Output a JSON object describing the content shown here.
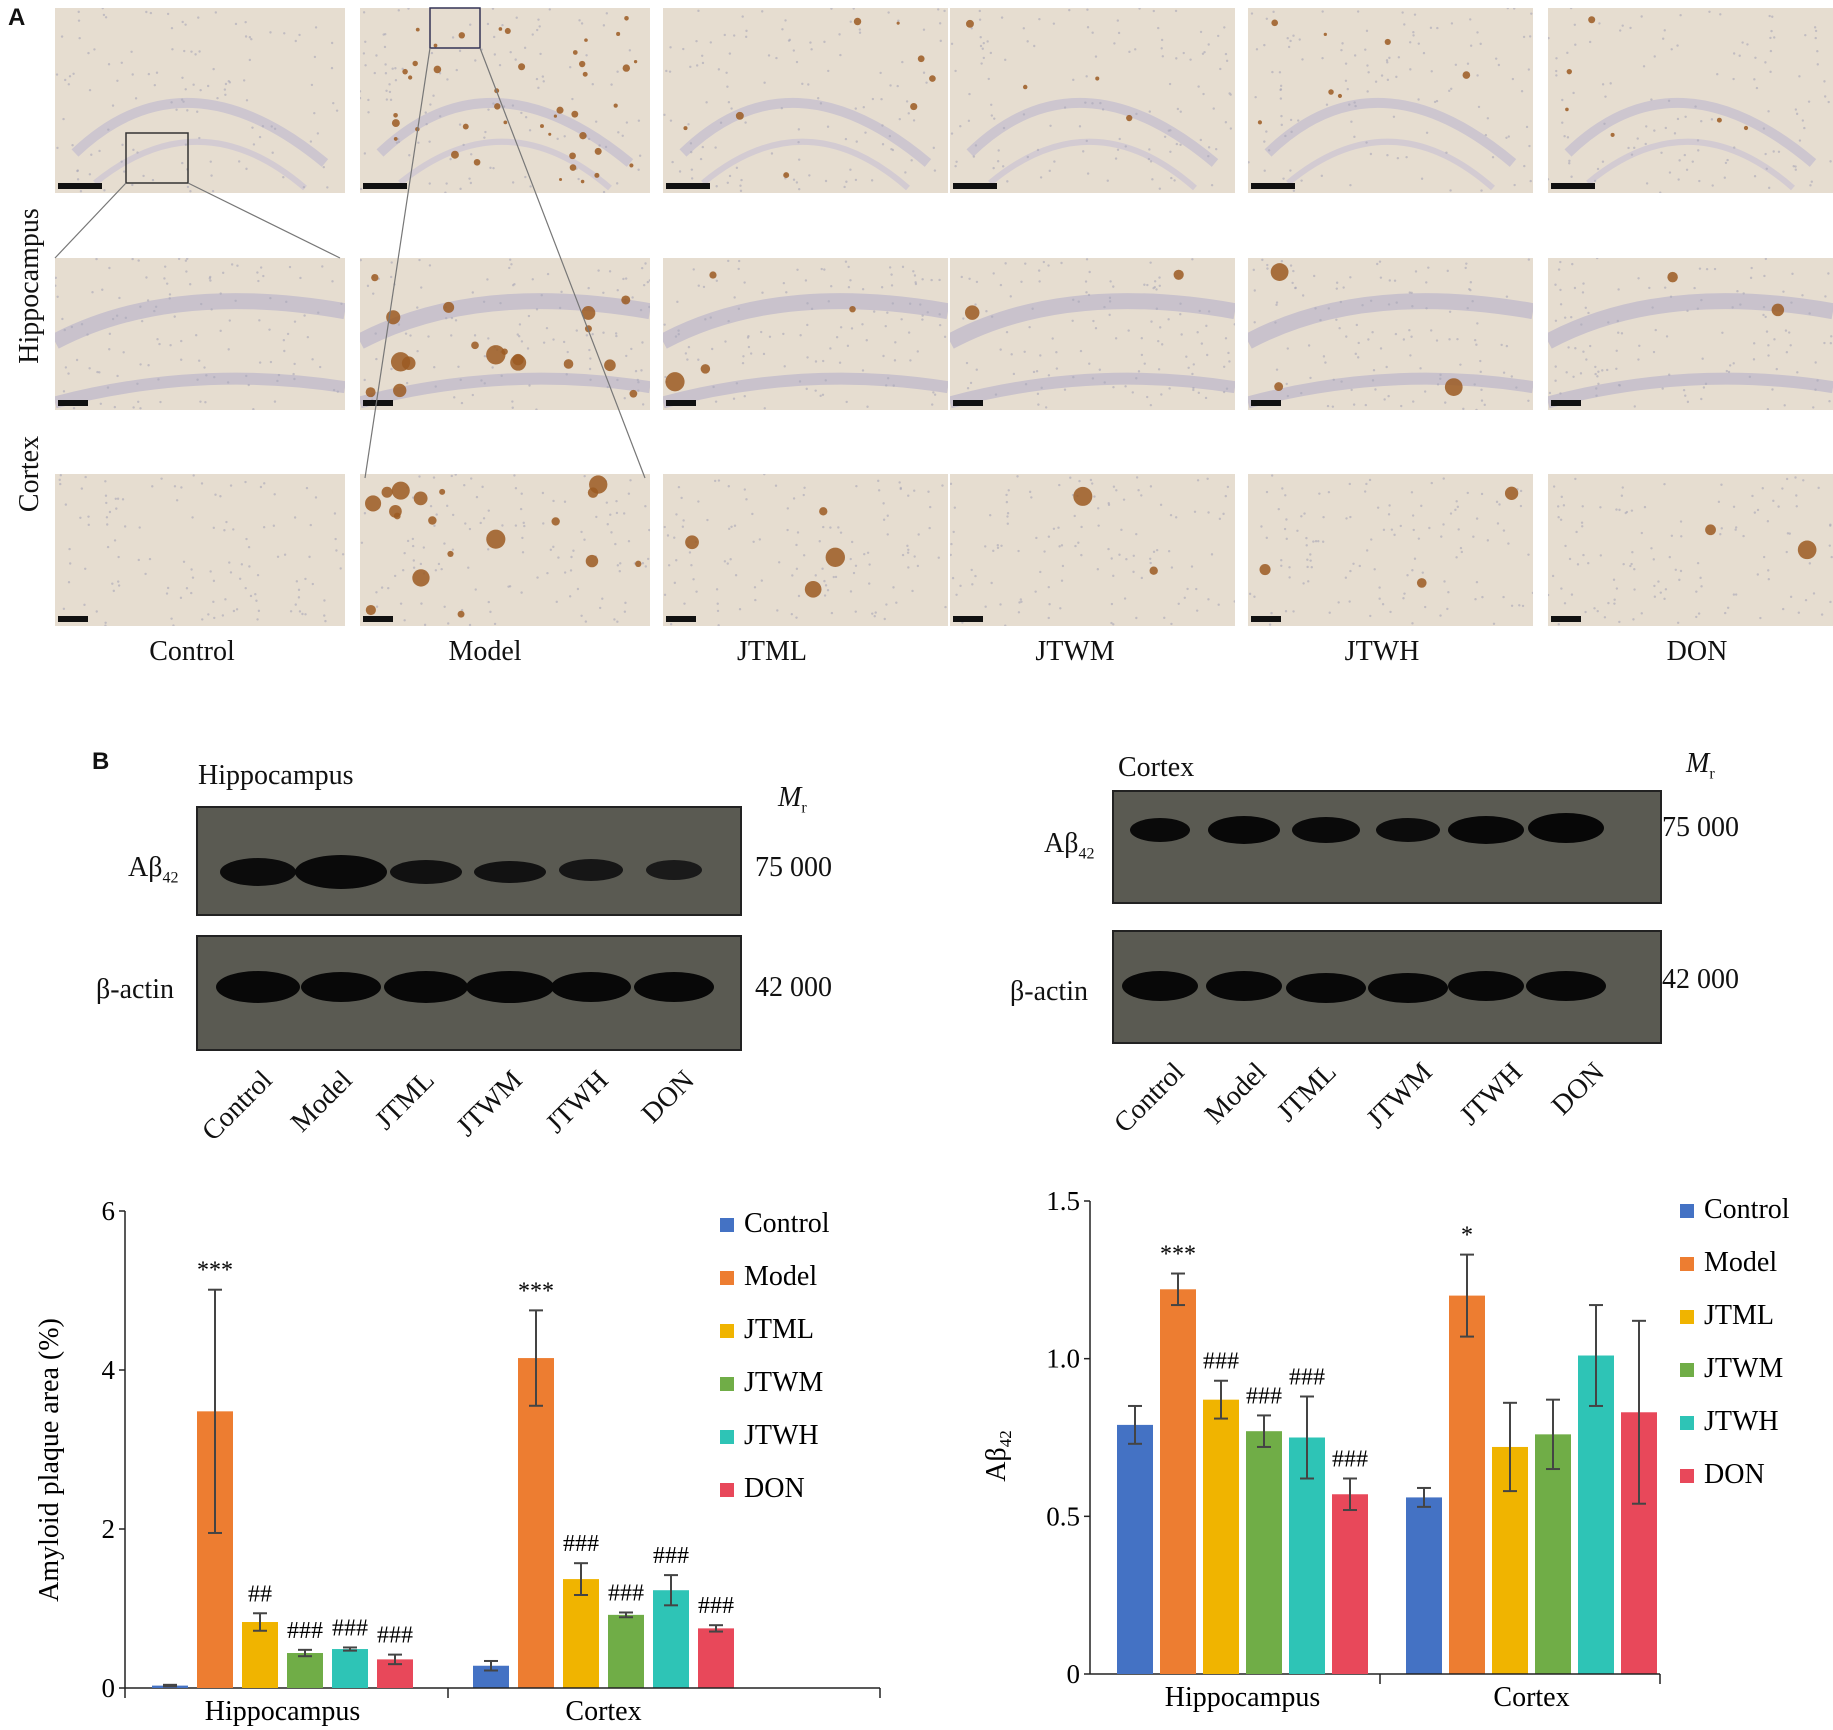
{
  "panel_a": {
    "letter": "A",
    "row_labels": {
      "hippocampus": "Hippocampus",
      "cortex": "Cortex"
    },
    "columns": [
      "Control",
      "Model",
      "JTML",
      "JTWM",
      "JTWH",
      "DON"
    ]
  },
  "panel_b": {
    "letter": "B",
    "blots": [
      {
        "title": "Hippocampus",
        "mr_label": "M",
        "mr_sub": "r",
        "band1_label": "Aβ",
        "band1_sub": "42",
        "band1_mass": "75 000",
        "band2_label": "β-actin",
        "band2_mass": "42 000",
        "lanes": [
          "Control",
          "Model",
          "JTML",
          "JTWM",
          "JTWH",
          "DON"
        ]
      },
      {
        "title": "Cortex",
        "mr_label": "M",
        "mr_sub": "r",
        "band1_label": "Aβ",
        "band1_sub": "42",
        "band1_mass": "75 000",
        "band2_label": "β-actin",
        "band2_mass": "42 000",
        "lanes": [
          "Control",
          "Model",
          "JTML",
          "JTWM",
          "JTWH",
          "DON"
        ]
      }
    ]
  },
  "colors": {
    "Control": "#4472c4",
    "Model": "#ed7d31",
    "JTML": "#f0b400",
    "JTWM": "#70ad47",
    "JTWH": "#2ec4b6",
    "DON": "#e8485a"
  },
  "chart_data": [
    {
      "type": "bar",
      "ylabel": "Amyloid plaque area (%)",
      "ylim": [
        0,
        6
      ],
      "yticks": [
        0,
        2,
        4,
        6
      ],
      "categories": [
        "Hippocampus",
        "Cortex"
      ],
      "legend_position": "top-right",
      "series": [
        {
          "name": "Control",
          "values": [
            0.03,
            0.28
          ],
          "errors": [
            0.01,
            0.06
          ],
          "marks": [
            "",
            ""
          ]
        },
        {
          "name": "Model",
          "values": [
            3.48,
            4.15
          ],
          "errors": [
            1.53,
            0.6
          ],
          "marks": [
            "***",
            "***"
          ]
        },
        {
          "name": "JTML",
          "values": [
            0.83,
            1.37
          ],
          "errors": [
            0.11,
            0.2
          ],
          "marks": [
            "##",
            "###"
          ]
        },
        {
          "name": "JTWM",
          "values": [
            0.44,
            0.92
          ],
          "errors": [
            0.04,
            0.03
          ],
          "marks": [
            "###",
            "###"
          ]
        },
        {
          "name": "JTWH",
          "values": [
            0.49,
            1.23
          ],
          "errors": [
            0.02,
            0.19
          ],
          "marks": [
            "###",
            "###"
          ]
        },
        {
          "name": "DON",
          "values": [
            0.36,
            0.75
          ],
          "errors": [
            0.06,
            0.04
          ],
          "marks": [
            "###",
            "###"
          ]
        }
      ]
    },
    {
      "type": "bar",
      "ylabel": "Aβ",
      "ylabel_sub": "42",
      "ylim": [
        0,
        1.5
      ],
      "yticks": [
        "0",
        "0.5",
        "1.0",
        "1.5"
      ],
      "categories": [
        "Hippocampus",
        "Cortex"
      ],
      "legend_position": "top-right",
      "series": [
        {
          "name": "Control",
          "values": [
            0.79,
            0.56
          ],
          "errors": [
            0.06,
            0.03
          ],
          "marks": [
            "",
            ""
          ]
        },
        {
          "name": "Model",
          "values": [
            1.22,
            1.2
          ],
          "errors": [
            0.05,
            0.13
          ],
          "marks": [
            "***",
            "*"
          ]
        },
        {
          "name": "JTML",
          "values": [
            0.87,
            0.72
          ],
          "errors": [
            0.06,
            0.14
          ],
          "marks": [
            "###",
            ""
          ]
        },
        {
          "name": "JTWM",
          "values": [
            0.77,
            0.76
          ],
          "errors": [
            0.05,
            0.11
          ],
          "marks": [
            "###",
            ""
          ]
        },
        {
          "name": "JTWH",
          "values": [
            0.75,
            1.01
          ],
          "errors": [
            0.13,
            0.16
          ],
          "marks": [
            "###",
            ""
          ]
        },
        {
          "name": "DON",
          "values": [
            0.57,
            0.83
          ],
          "errors": [
            0.05,
            0.29
          ],
          "marks": [
            "###",
            ""
          ]
        }
      ]
    }
  ]
}
